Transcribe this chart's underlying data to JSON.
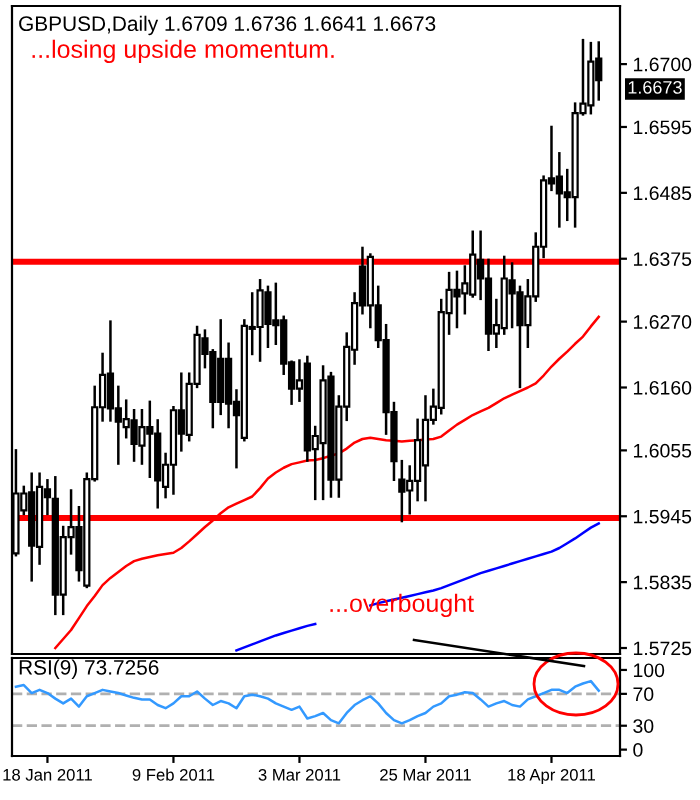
{
  "chart_data": [
    {
      "type": "candlestick",
      "title": "GBPUSD,Daily 1.6709 1.6736 1.6641 1.6673",
      "tick_labels": "y",
      "categories": [
        null,
        null,
        null,
        null,
        null,
        null,
        null,
        null,
        null,
        null,
        null,
        null,
        null,
        null,
        null,
        null,
        null,
        null,
        null,
        null,
        null,
        null,
        null,
        null,
        null,
        null,
        null,
        null,
        null,
        null,
        null,
        null,
        null,
        null,
        null,
        null,
        null,
        null,
        null,
        null,
        null,
        null,
        null,
        null,
        null,
        null,
        null,
        null,
        null,
        null,
        null,
        null,
        null,
        null,
        null,
        null,
        null,
        null,
        null,
        null,
        null,
        null,
        null,
        null,
        null,
        null,
        null,
        null,
        null,
        null,
        null,
        null,
        null,
        null,
        null
      ],
      "ohlc": [
        [
          1.5883,
          1.6055,
          1.588,
          1.5983
        ],
        [
          1.5955,
          1.5994,
          1.5949,
          1.5983
        ],
        [
          1.5985,
          1.6016,
          1.5838,
          1.5896
        ],
        [
          1.5894,
          1.6016,
          1.5866,
          1.5994
        ],
        [
          1.599,
          1.6005,
          1.5949,
          1.5977
        ],
        [
          1.5974,
          1.601,
          1.5782,
          1.5814
        ],
        [
          1.5814,
          1.5927,
          1.5782,
          1.591
        ],
        [
          1.591,
          1.5988,
          1.5883,
          1.5927
        ],
        [
          1.5927,
          1.596,
          1.5838,
          1.5855
        ],
        [
          1.5829,
          1.6016,
          1.5827,
          1.6007
        ],
        [
          1.6007,
          1.6161,
          1.6005,
          1.6127
        ],
        [
          1.6127,
          1.6216,
          1.6105,
          1.6181
        ],
        [
          1.6183,
          1.627,
          1.6105,
          1.6125
        ],
        [
          1.6125,
          1.6161,
          1.6033,
          1.6103
        ],
        [
          1.6094,
          1.6138,
          1.6077,
          1.6107
        ],
        [
          1.6105,
          1.6122,
          1.6038,
          1.6066
        ],
        [
          1.6063,
          1.6122,
          1.6033,
          1.6094
        ],
        [
          1.6094,
          1.6136,
          1.6011,
          1.6083
        ],
        [
          1.6083,
          1.6105,
          1.596,
          1.6005
        ],
        [
          1.5994,
          1.6049,
          1.5977,
          1.6031
        ],
        [
          1.6031,
          1.6127,
          1.5983,
          1.6122
        ],
        [
          1.6122,
          1.6183,
          1.6055,
          1.6083
        ],
        [
          1.6081,
          1.6183,
          1.6072,
          1.6166
        ],
        [
          1.6166,
          1.6261,
          1.6161,
          1.6248
        ],
        [
          1.6242,
          1.6255,
          1.6194,
          1.6216
        ],
        [
          1.6219,
          1.6222,
          1.6094,
          1.6136
        ],
        [
          1.6208,
          1.6272,
          1.6116,
          1.6136
        ],
        [
          1.6208,
          1.6233,
          1.6094,
          1.6133
        ],
        [
          1.6136,
          1.6155,
          1.6027,
          1.6114
        ],
        [
          1.6076,
          1.6272,
          1.6072,
          1.6263
        ],
        [
          1.6258,
          1.6317,
          1.6216,
          1.6261
        ],
        [
          1.6261,
          1.6339,
          1.6205,
          1.6322
        ],
        [
          1.6319,
          1.6328,
          1.6228,
          1.6266
        ],
        [
          1.6272,
          1.6333,
          1.6233,
          1.6264
        ],
        [
          1.6272,
          1.6278,
          1.6183,
          1.62
        ],
        [
          1.6202,
          1.6203,
          1.6133,
          1.6158
        ],
        [
          1.6158,
          1.6205,
          1.6138,
          1.6172
        ],
        [
          1.62,
          1.6211,
          1.6038,
          1.6055
        ],
        [
          1.6057,
          1.6094,
          1.5974,
          1.6079
        ],
        [
          1.6067,
          1.6195,
          1.5974,
          1.6172
        ],
        [
          1.6178,
          1.6184,
          1.5978,
          1.6006
        ],
        [
          1.6006,
          1.6145,
          1.5978,
          1.6128
        ],
        [
          1.6128,
          1.625,
          1.6106,
          1.6228
        ],
        [
          1.6223,
          1.6317,
          1.62,
          1.6301
        ],
        [
          1.6362,
          1.6393,
          1.6284,
          1.6297
        ],
        [
          1.6297,
          1.6382,
          1.6261,
          1.6378
        ],
        [
          1.6297,
          1.6328,
          1.6228,
          1.6239
        ],
        [
          1.6239,
          1.6264,
          1.6083,
          1.6119
        ],
        [
          1.6119,
          1.6134,
          1.6006,
          1.6037
        ],
        [
          1.6006,
          1.6037,
          1.5937,
          1.5986
        ],
        [
          1.5988,
          1.6028,
          1.595,
          1.6004
        ],
        [
          1.6004,
          1.6106,
          1.5972,
          1.6072
        ],
        [
          1.603,
          1.6145,
          1.5972,
          1.6106
        ],
        [
          1.6106,
          1.6156,
          1.61,
          1.6128
        ],
        [
          1.6126,
          1.6306,
          1.6117,
          1.6286
        ],
        [
          1.6284,
          1.6351,
          1.625,
          1.6323
        ],
        [
          1.6323,
          1.6353,
          1.6261,
          1.6312
        ],
        [
          1.6317,
          1.6362,
          1.6284,
          1.6334
        ],
        [
          1.6315,
          1.642,
          1.6312,
          1.6382
        ],
        [
          1.6373,
          1.642,
          1.6308,
          1.6342
        ],
        [
          1.6342,
          1.6373,
          1.6223,
          1.625
        ],
        [
          1.625,
          1.6306,
          1.6228,
          1.6264
        ],
        [
          1.6259,
          1.6378,
          1.625,
          1.6342
        ],
        [
          1.6339,
          1.6367,
          1.6261,
          1.6317
        ],
        [
          1.6319,
          1.6328,
          1.6161,
          1.6264
        ],
        [
          1.6264,
          1.6339,
          1.6228,
          1.6312
        ],
        [
          1.6312,
          1.6417,
          1.6305,
          1.6395
        ],
        [
          1.6395,
          1.6512,
          1.6378,
          1.6506
        ],
        [
          1.6509,
          1.6595,
          1.649,
          1.6501
        ],
        [
          1.6512,
          1.6551,
          1.6429,
          1.6484
        ],
        [
          1.6486,
          1.6523,
          1.644,
          1.6478
        ],
        [
          1.6478,
          1.6634,
          1.6429,
          1.6618
        ],
        [
          1.6618,
          1.674,
          1.6616,
          1.6634
        ],
        [
          1.6631,
          1.6735,
          1.6618,
          1.6704
        ],
        [
          1.6709,
          1.6736,
          1.6641,
          1.6673
        ]
      ],
      "series": [
        {
          "type": "line",
          "color": "#ff0000",
          "values": [
            null,
            null,
            null,
            null,
            null,
            1.5725,
            1.574,
            1.5755,
            1.5775,
            1.5795,
            1.5812,
            1.583,
            1.5842,
            1.5852,
            1.5862,
            1.587,
            1.5874,
            1.5877,
            1.588,
            1.5882,
            1.5884,
            1.5892,
            1.5903,
            1.5915,
            1.5927,
            1.5938,
            1.595,
            1.596,
            1.5966,
            1.5972,
            1.5978,
            1.5992,
            1.6008,
            1.6018,
            1.6026,
            1.6032,
            1.6035,
            1.6038,
            1.6039,
            1.6042,
            1.6046,
            1.605,
            1.6058,
            1.6068,
            1.6074,
            1.6076,
            1.6074,
            1.6072,
            1.6071,
            1.607,
            1.6071,
            1.6072,
            1.6073,
            1.6074,
            1.6078,
            1.6088,
            1.6098,
            1.6106,
            1.6114,
            1.612,
            1.6126,
            1.6134,
            1.6142,
            1.6148,
            1.6154,
            1.616,
            1.6167,
            1.618,
            1.6195,
            1.6208,
            1.622,
            1.6233,
            1.6245,
            1.6262,
            1.6278
          ]
        },
        {
          "type": "line",
          "color": "#0000ff",
          "values": [
            null,
            null,
            null,
            null,
            null,
            null,
            null,
            null,
            null,
            null,
            null,
            null,
            null,
            null,
            null,
            null,
            null,
            null,
            null,
            null,
            null,
            null,
            null,
            null,
            null,
            null,
            null,
            null,
            1.5721,
            1.5726,
            1.5731,
            1.5736,
            1.5741,
            1.5746,
            1.575,
            1.5754,
            1.5758,
            1.5762,
            1.5765,
            null,
            null,
            null,
            null,
            null,
            null,
            1.5796,
            1.58,
            1.5803,
            1.5806,
            1.5809,
            1.5812,
            1.5815,
            1.5818,
            1.5821,
            1.5825,
            1.583,
            1.5835,
            1.584,
            1.5845,
            1.585,
            1.5854,
            1.5858,
            1.5862,
            1.5866,
            1.587,
            1.5874,
            1.5878,
            1.5882,
            1.5886,
            1.5892,
            1.59,
            1.5908,
            1.5917,
            1.5926,
            1.5933
          ]
        }
      ],
      "ylim": [
        1.5715,
        1.6797
      ],
      "yticks": [
        {
          "value": 1.67,
          "label": "1.6700"
        },
        {
          "value": 1.6595,
          "label": "1.6595"
        },
        {
          "value": 1.6485,
          "label": "1.6485"
        },
        {
          "value": 1.6375,
          "label": "1.6375"
        },
        {
          "value": 1.627,
          "label": "1.6270"
        },
        {
          "value": 1.616,
          "label": "1.6160"
        },
        {
          "value": 1.6055,
          "label": "1.6055"
        },
        {
          "value": 1.5945,
          "label": "1.5945"
        },
        {
          "value": 1.5835,
          "label": "1.5835"
        },
        {
          "value": 1.5725,
          "label": "1.5725"
        }
      ],
      "ref_lines": [
        {
          "axis": "y",
          "value": 1.637,
          "color": "#ff0000"
        },
        {
          "axis": "y",
          "value": 1.5942,
          "color": "#ff0000"
        }
      ],
      "annotations": [
        "...losing upside momentum.",
        "...overbought",
        "1.6673"
      ]
    },
    {
      "type": "line",
      "title": "RSI(9) 73.7256",
      "categories": [
        null,
        null,
        null,
        null,
        "18 Jan 2011",
        null,
        null,
        null,
        null,
        null,
        null,
        null,
        null,
        null,
        null,
        null,
        null,
        null,
        null,
        null,
        "9 Feb 2011",
        null,
        null,
        null,
        null,
        null,
        null,
        null,
        null,
        null,
        null,
        null,
        null,
        null,
        null,
        null,
        "3 Mar 2011",
        null,
        null,
        null,
        null,
        null,
        null,
        null,
        null,
        null,
        null,
        null,
        null,
        null,
        null,
        null,
        "25 Mar 2011",
        null,
        null,
        null,
        null,
        null,
        null,
        null,
        null,
        null,
        null,
        null,
        null,
        null,
        null,
        null,
        "18 Apr 2011",
        null,
        null,
        null,
        null,
        null,
        null
      ],
      "series": [
        {
          "color": "#3399ff",
          "values": [
            79,
            81,
            71,
            75,
            71,
            64,
            58,
            64,
            54,
            67,
            71,
            75,
            73,
            71,
            68,
            65,
            63,
            63,
            56,
            52,
            58,
            67,
            67,
            73,
            64,
            56,
            61,
            58,
            52,
            67,
            69,
            67,
            64,
            58,
            54,
            50,
            54,
            39,
            42,
            46,
            37,
            33,
            46,
            56,
            62,
            67,
            58,
            46,
            37,
            33,
            37,
            42,
            46,
            54,
            58,
            67,
            69,
            72,
            71,
            63,
            54,
            58,
            61,
            56,
            54,
            63,
            67,
            71,
            75,
            75,
            71,
            79,
            83,
            86,
            74
          ]
        }
      ],
      "ylim": [
        -8,
        115
      ],
      "yticks": [
        100,
        70,
        30,
        0
      ],
      "ref_lines": [
        {
          "axis": "y",
          "value": 70,
          "color": "#b0b0b0",
          "line_style": "dashed"
        },
        {
          "axis": "y",
          "value": 30,
          "color": "#b0b0b0",
          "line_style": "dashed"
        }
      ]
    }
  ]
}
